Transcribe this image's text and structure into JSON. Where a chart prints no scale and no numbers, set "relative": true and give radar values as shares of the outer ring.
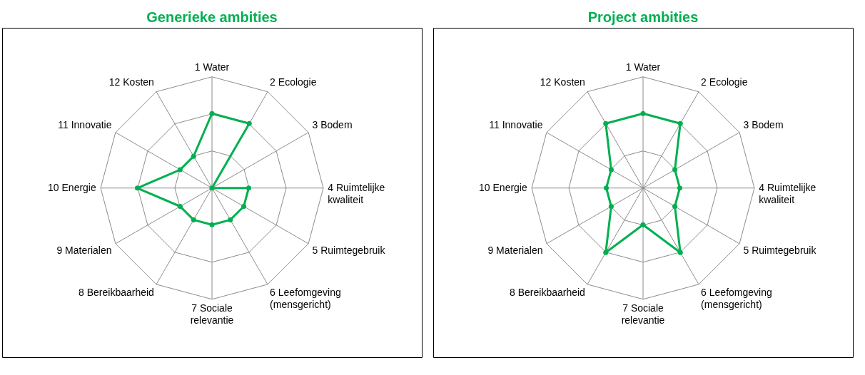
{
  "chart_data": [
    {
      "type": "radar",
      "title": "Generieke ambities",
      "categories": [
        "1 Water",
        "2 Ecologie",
        "3 Bodem",
        "4 Ruimtelijke kwaliteit",
        "5 Ruimtegebruik",
        "6 Leefomgeving (mensgericht)",
        "7 Sociale relevantie",
        "8 Bereikbaarheid",
        "9 Materialen",
        "10 Energie",
        "11 Innovatie",
        "12 Kosten"
      ],
      "relative": true,
      "grid": true,
      "marker": "circle",
      "line_style": "solid",
      "series": [
        {
          "color": "#00b050",
          "values": [
            0.67,
            0.67,
            0,
            0.33,
            0.33,
            0.33,
            0.33,
            0.33,
            0.33,
            0.67,
            0.33,
            0.33
          ]
        }
      ]
    },
    {
      "type": "radar",
      "title": "Project ambities",
      "categories": [
        "1 Water",
        "2 Ecologie",
        "3 Bodem",
        "4 Ruimtelijke kwaliteit",
        "5 Ruimtegebruik",
        "6 Leefomgeving (mensgericht)",
        "7 Sociale relevantie",
        "8 Bereikbaarheid",
        "9 Materialen",
        "10 Energie",
        "11 Innovatie",
        "12 Kosten"
      ],
      "relative": true,
      "grid": true,
      "marker": "circle",
      "line_style": "solid",
      "series": [
        {
          "color": "#00b050",
          "values": [
            0.67,
            0.67,
            0.33,
            0.33,
            0.33,
            0.67,
            0.33,
            0.67,
            0.33,
            0.33,
            0.33,
            0.67
          ]
        }
      ]
    }
  ]
}
